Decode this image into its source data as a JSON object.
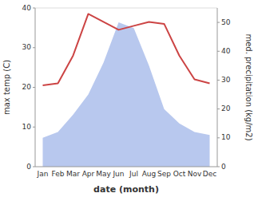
{
  "chart_data": {
    "type": "line",
    "xlabel": "date (month)",
    "ylabel": "max temp (C)",
    "y2label": "med. precipitation (kg/m2)",
    "categories": [
      "Jan",
      "Feb",
      "Mar",
      "Apr",
      "May",
      "Jun",
      "Jul",
      "Aug",
      "Sep",
      "Oct",
      "Nov",
      "Dec"
    ],
    "series": [
      {
        "type": "area",
        "axis": "y2",
        "color": "#b8c8ee",
        "values": [
          10.0,
          12.0,
          18.0,
          25.0,
          36.0,
          50.0,
          48.0,
          35.0,
          20.0,
          15.0,
          12.0,
          11.0
        ]
      },
      {
        "type": "line",
        "color": "#cc4444",
        "values": [
          20.5,
          21.0,
          28.0,
          38.5,
          36.5,
          34.5,
          35.5,
          36.5,
          36.0,
          28.0,
          22.0,
          21.0
        ]
      }
    ],
    "ylim": [
      0,
      40
    ],
    "yticks": [
      0,
      10,
      20,
      30,
      40
    ],
    "y2lim": [
      0,
      55
    ],
    "y2ticks": [
      0,
      10,
      20,
      30,
      40,
      50
    ]
  }
}
